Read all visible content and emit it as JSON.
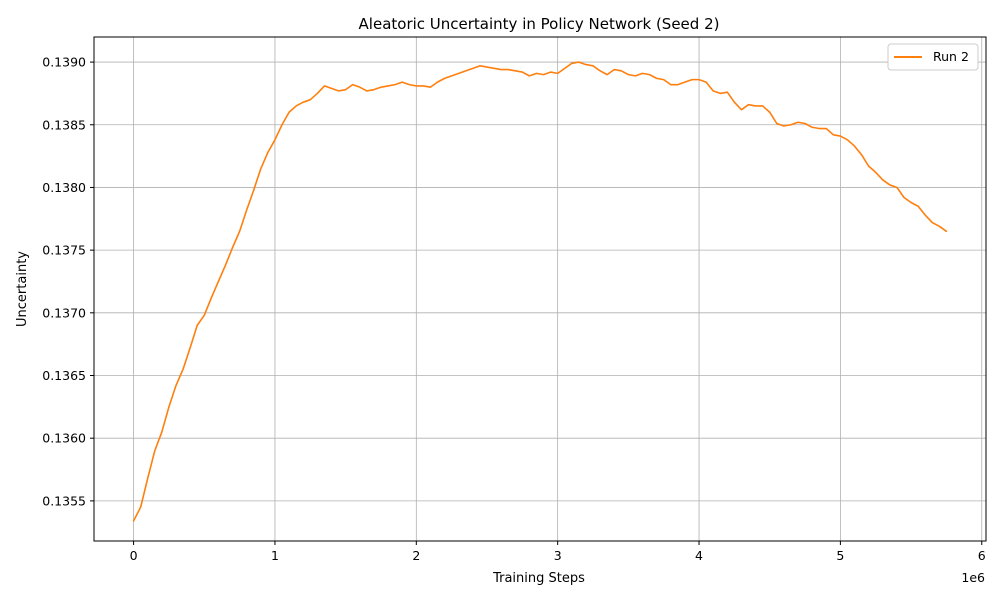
{
  "chart_data": {
    "type": "line",
    "title": "Aleatoric Uncertainty in Policy Network (Seed 2)",
    "xlabel": "Training Steps",
    "ylabel": "Uncertainty",
    "x_offset_label": "1e6",
    "xlim": [
      -280000,
      6030000
    ],
    "ylim": [
      0.13518,
      0.1392
    ],
    "x_ticks": [
      0,
      1000000,
      2000000,
      3000000,
      4000000,
      5000000,
      6000000
    ],
    "x_tick_labels": [
      "0",
      "1",
      "2",
      "3",
      "4",
      "5",
      "6"
    ],
    "y_ticks": [
      0.1355,
      0.136,
      0.1365,
      0.137,
      0.1375,
      0.138,
      0.1385,
      0.139
    ],
    "y_tick_labels": [
      "0.1355",
      "0.1360",
      "0.1365",
      "0.1370",
      "0.1375",
      "0.1380",
      "0.1385",
      "0.1390"
    ],
    "grid": true,
    "legend_position": "top-right",
    "series": [
      {
        "name": "Run 2",
        "color": "#ff7f0e",
        "x": [
          0,
          50000,
          100000,
          150000,
          200000,
          250000,
          300000,
          350000,
          400000,
          450000,
          500000,
          550000,
          600000,
          650000,
          700000,
          750000,
          800000,
          850000,
          900000,
          950000,
          1000000,
          1050000,
          1100000,
          1150000,
          1200000,
          1250000,
          1300000,
          1350000,
          1400000,
          1450000,
          1500000,
          1550000,
          1600000,
          1650000,
          1700000,
          1750000,
          1800000,
          1850000,
          1900000,
          1950000,
          2000000,
          2050000,
          2100000,
          2150000,
          2200000,
          2250000,
          2300000,
          2350000,
          2400000,
          2450000,
          2500000,
          2550000,
          2600000,
          2650000,
          2700000,
          2750000,
          2800000,
          2850000,
          2900000,
          2950000,
          3000000,
          3050000,
          3100000,
          3150000,
          3200000,
          3250000,
          3300000,
          3350000,
          3400000,
          3450000,
          3500000,
          3550000,
          3600000,
          3650000,
          3700000,
          3750000,
          3800000,
          3850000,
          3900000,
          3950000,
          4000000,
          4050000,
          4100000,
          4150000,
          4200000,
          4250000,
          4300000,
          4350000,
          4400000,
          4450000,
          4500000,
          4550000,
          4600000,
          4650000,
          4700000,
          4750000,
          4800000,
          4850000,
          4900000,
          4950000,
          5000000,
          5050000,
          5100000,
          5150000,
          5200000,
          5250000,
          5300000,
          5350000,
          5400000,
          5450000,
          5500000,
          5550000,
          5600000,
          5650000,
          5700000,
          5750000
        ],
        "values": [
          0.13534,
          0.13545,
          0.13568,
          0.1359,
          0.13605,
          0.13625,
          0.13642,
          0.13655,
          0.13672,
          0.1369,
          0.13698,
          0.13712,
          0.13725,
          0.13738,
          0.13752,
          0.13765,
          0.13782,
          0.13798,
          0.13815,
          0.13828,
          0.13838,
          0.1385,
          0.1386,
          0.13865,
          0.13868,
          0.1387,
          0.13875,
          0.13881,
          0.13879,
          0.13877,
          0.13878,
          0.13882,
          0.1388,
          0.13877,
          0.13878,
          0.1388,
          0.13881,
          0.13882,
          0.13884,
          0.13882,
          0.13881,
          0.13881,
          0.1388,
          0.13884,
          0.13887,
          0.13889,
          0.13891,
          0.13893,
          0.13895,
          0.13897,
          0.13896,
          0.13895,
          0.13894,
          0.13894,
          0.13893,
          0.13892,
          0.13889,
          0.13891,
          0.1389,
          0.13892,
          0.13891,
          0.13895,
          0.13899,
          0.139,
          0.13898,
          0.13897,
          0.13893,
          0.1389,
          0.13894,
          0.13893,
          0.1389,
          0.13889,
          0.13891,
          0.1389,
          0.13887,
          0.13886,
          0.13882,
          0.13882,
          0.13884,
          0.13886,
          0.13886,
          0.13884,
          0.13877,
          0.13875,
          0.13876,
          0.13868,
          0.13862,
          0.13866,
          0.13865,
          0.13865,
          0.1386,
          0.13851,
          0.13849,
          0.1385,
          0.13852,
          0.13851,
          0.13848,
          0.13847,
          0.13847,
          0.13842,
          0.13841,
          0.13838,
          0.13833,
          0.13826,
          0.13817,
          0.13812,
          0.13806,
          0.13802,
          0.138,
          0.13792,
          0.13788,
          0.13785,
          0.13778,
          0.13772,
          0.13769,
          0.13765
        ]
      }
    ]
  }
}
